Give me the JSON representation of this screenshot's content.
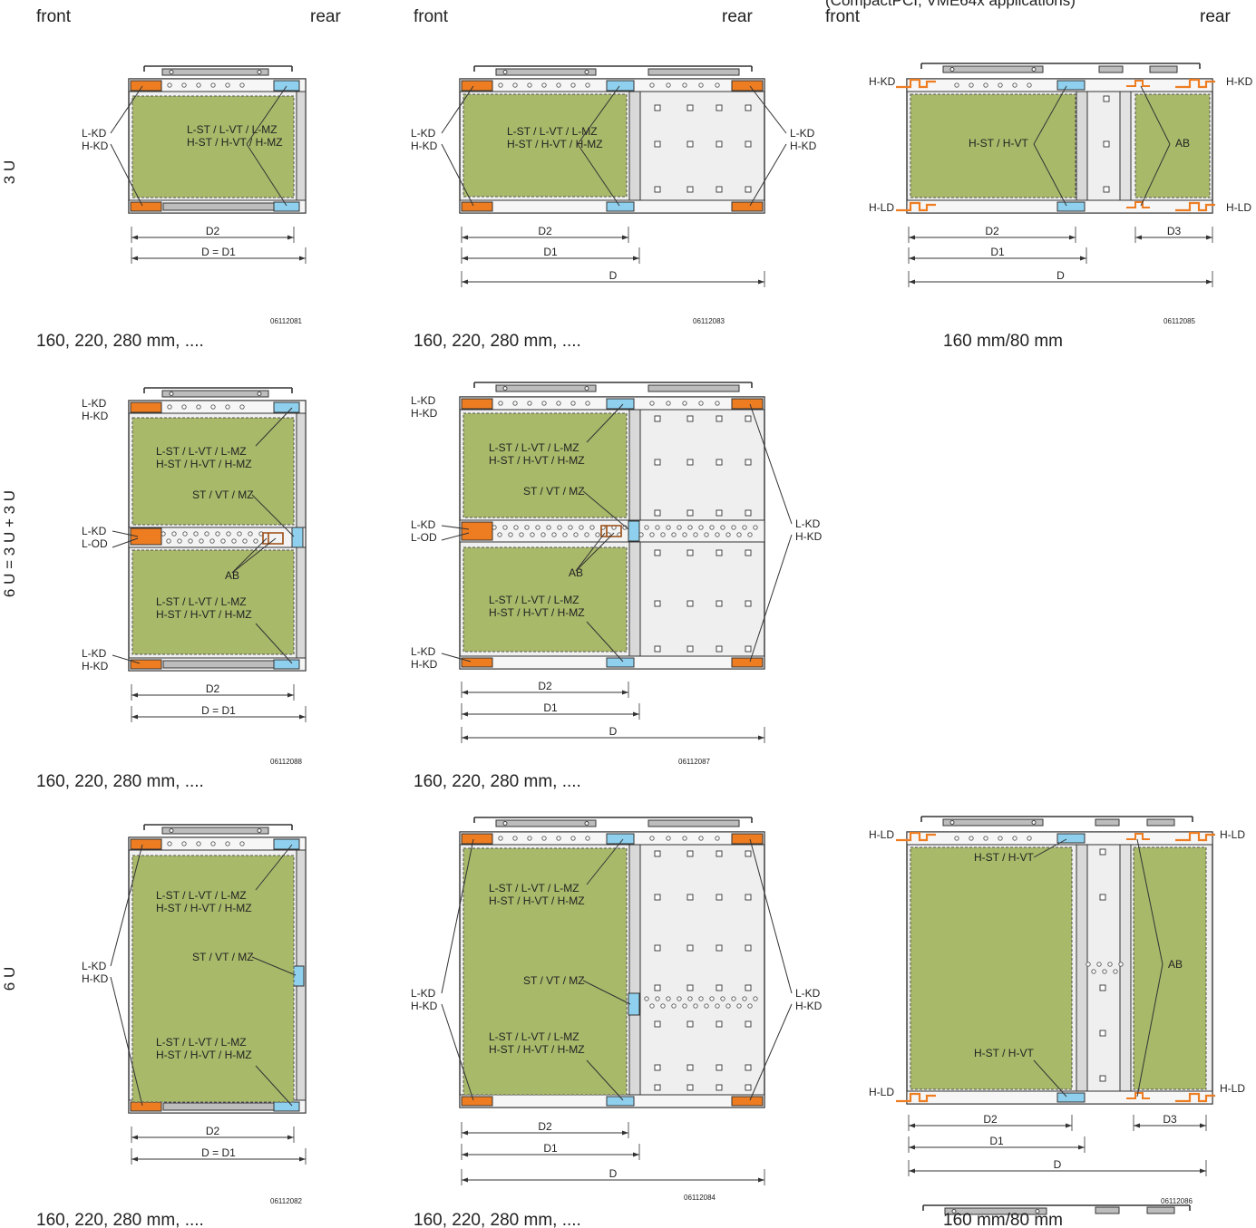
{
  "colors": {
    "board": "#a8b96a",
    "rail_orange": "#ee7d22",
    "rail_blue": "#8fd0ee",
    "frame": "#333333",
    "rail_gray": "#bdbdbd",
    "panel": "#efefef"
  },
  "header": {
    "front": "front",
    "rear": "rear",
    "clipped_note": "(CompactPCI, VME64x applications)"
  },
  "row_labels": [
    "3 U",
    "6 U = 3 U + 3 U",
    "6 U"
  ],
  "codes": {
    "kd": "L-KD\nH-KD",
    "kd_od": "L-KD\nL-OD",
    "stvtmz": "L-ST / L-VT / L-MZ\nH-ST / H-VT / H-MZ",
    "mid": "ST / VT / MZ",
    "ab": "AB",
    "hkd": "H-KD",
    "hld": "H-LD",
    "hsthvt": "H-ST / H-VT"
  },
  "dims": {
    "d": "D",
    "d1": "D1",
    "d2": "D2",
    "d3": "D3",
    "d_eq_d1": "D = D1"
  },
  "captions": {
    "depths": "160, 220, 280 mm, ....",
    "depth_split": "160 mm/80 mm"
  },
  "drawings": [
    {
      "id": "06112081"
    },
    {
      "id": "06112083"
    },
    {
      "id": "06112085"
    },
    {
      "id": "06112088"
    },
    {
      "id": "06112087"
    },
    {
      "id": "06112082"
    },
    {
      "id": "06112084"
    },
    {
      "id": "06112086"
    }
  ]
}
